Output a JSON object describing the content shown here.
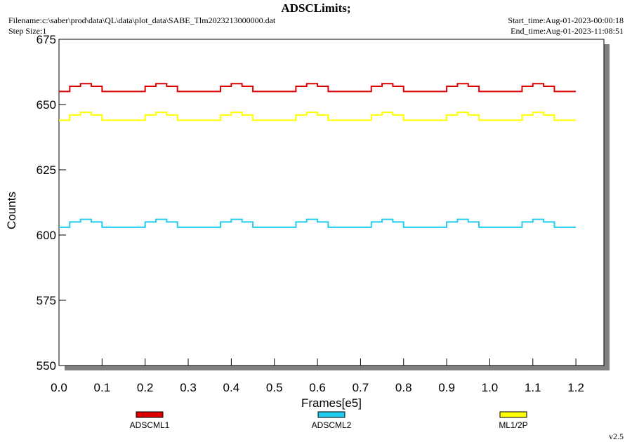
{
  "chart_data": {
    "type": "line",
    "step": "post",
    "title": "ADSCLimits;",
    "filename": "Filename:c:\\saber\\prod\\data\\QL\\data\\plot_data\\SABE_Tlm2023213000000.dat",
    "step_size": "Step Size:1",
    "start_time": "Start_time:Aug-01-2023-00:00:18",
    "end_time": "End_time:Aug-01-2023-11:08:51",
    "version": "v2.5",
    "xlabel": "Frames[e5]",
    "ylabel": "Counts",
    "xlim": [
      0,
      1.265
    ],
    "ylim": [
      550,
      675
    ],
    "xticks": [
      {
        "value": 0,
        "label": "0.0"
      },
      0.1,
      0.2,
      0.3,
      0.4,
      0.5,
      0.6,
      0.7,
      0.8,
      0.9,
      {
        "value": 1,
        "label": "1.0"
      },
      1.1,
      1.2
    ],
    "yticks": [
      550,
      575,
      600,
      625,
      650,
      675
    ],
    "x": [
      0,
      0.025,
      0.05,
      0.075,
      0.1,
      0.125,
      0.15,
      0.175,
      0.2,
      0.225,
      0.25,
      0.275,
      0.3,
      0.325,
      0.35,
      0.375,
      0.4,
      0.425,
      0.45,
      0.475,
      0.5,
      0.525,
      0.55,
      0.575,
      0.6,
      0.625,
      0.65,
      0.675,
      0.7,
      0.725,
      0.75,
      0.775,
      0.8,
      0.825,
      0.85,
      0.875,
      0.9,
      0.925,
      0.95,
      0.975,
      1,
      1.025,
      1.05,
      1.075,
      1.1,
      1.125,
      1.15,
      1.175,
      1.2
    ],
    "series": [
      {
        "name": "ADSCML1",
        "color": "#dd0000",
        "values": [
          655,
          657,
          658,
          657,
          655,
          655,
          655,
          655,
          657,
          658,
          657,
          655,
          655,
          655,
          655,
          657,
          658,
          657,
          655,
          655,
          655,
          655,
          657,
          658,
          657,
          655,
          655,
          655,
          655,
          657,
          658,
          657,
          655,
          655,
          655,
          655,
          657,
          658,
          657,
          655,
          655,
          655,
          655,
          657,
          658,
          657,
          655,
          655,
          655
        ]
      },
      {
        "name": "ADSCML2",
        "color": "#22ccee",
        "values": [
          603,
          605,
          606,
          605,
          603,
          603,
          603,
          603,
          605,
          606,
          605,
          603,
          603,
          603,
          603,
          605,
          606,
          605,
          603,
          603,
          603,
          603,
          605,
          606,
          605,
          603,
          603,
          603,
          603,
          605,
          606,
          605,
          603,
          603,
          603,
          603,
          605,
          606,
          605,
          603,
          603,
          603,
          603,
          605,
          606,
          605,
          603,
          603,
          603
        ]
      },
      {
        "name": "ML1/2P",
        "color": "#ffff00",
        "values": [
          644,
          646,
          647,
          646,
          644,
          644,
          644,
          644,
          646,
          647,
          646,
          644,
          644,
          644,
          644,
          646,
          647,
          646,
          644,
          644,
          644,
          644,
          646,
          647,
          646,
          644,
          644,
          644,
          644,
          646,
          647,
          646,
          644,
          644,
          644,
          644,
          646,
          647,
          646,
          644,
          644,
          644,
          644,
          646,
          647,
          646,
          644,
          644,
          644
        ]
      }
    ]
  }
}
